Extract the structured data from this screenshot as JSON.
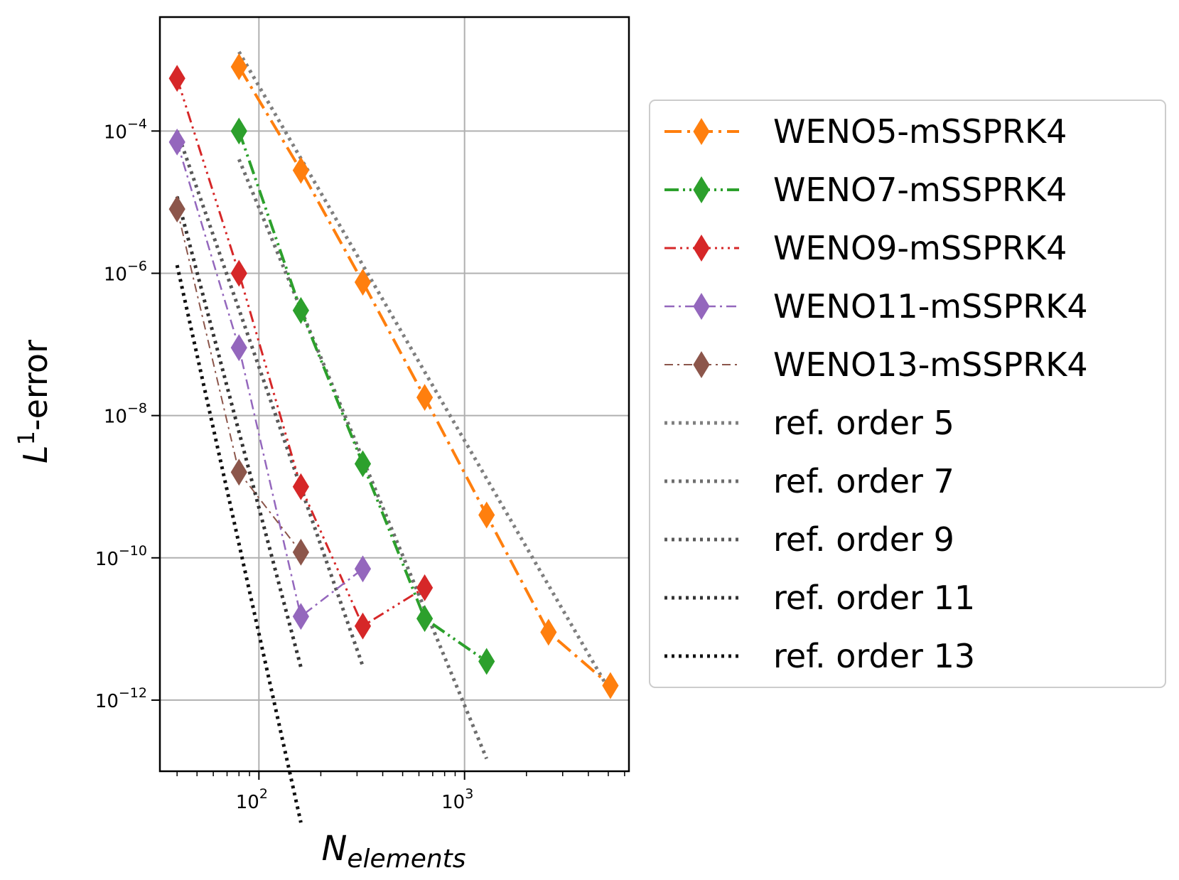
{
  "chart_data": {
    "type": "line",
    "xscale": "log",
    "yscale": "log",
    "xlim": [
      33,
      6300
    ],
    "ylim": [
      1e-13,
      0.004
    ],
    "xticks": [
      {
        "value": 100,
        "base": "10",
        "exp": "2"
      },
      {
        "value": 1000,
        "base": "10",
        "exp": "3"
      }
    ],
    "yticks": [
      {
        "value": 0.0001,
        "base": "10",
        "exp": "−4"
      },
      {
        "value": 1e-06,
        "base": "10",
        "exp": "−6"
      },
      {
        "value": 1e-08,
        "base": "10",
        "exp": "−8"
      },
      {
        "value": 1e-10,
        "base": "10",
        "exp": "−10"
      },
      {
        "value": 1e-12,
        "base": "10",
        "exp": "−12"
      }
    ],
    "xlabel": {
      "main": "N",
      "sub": "elements"
    },
    "ylabel": {
      "pre": "L",
      "sup": "1",
      "post": "-error"
    },
    "grid": true,
    "legend_position": "right-outside",
    "series": [
      {
        "name": "WENO5-mSSPRK4",
        "color": "#ff7f0e",
        "dash": "24 8 4 8",
        "width": 4,
        "x": [
          80,
          160,
          320,
          640,
          1280,
          2560,
          5120
        ],
        "y": [
          0.0008,
          2.8e-05,
          7.5e-07,
          1.8e-08,
          4e-10,
          9e-12,
          1.6e-12
        ]
      },
      {
        "name": "WENO7-mSSPRK4",
        "color": "#2ca02c",
        "dash": "20 6 3 6 3 6",
        "width": 4,
        "x": [
          80,
          160,
          320,
          640,
          1280
        ],
        "y": [
          0.0001,
          3e-07,
          2.1e-09,
          1.4e-11,
          3.5e-12
        ]
      },
      {
        "name": "WENO9-mSSPRK4",
        "color": "#d62728",
        "dash": "16 6 3 6 3 6 3 6",
        "width": 3,
        "x": [
          40,
          80,
          160,
          320,
          640
        ],
        "y": [
          0.00055,
          1e-06,
          1e-09,
          1.1e-11,
          3.8e-11
        ]
      },
      {
        "name": "WENO11-mSSPRK4",
        "color": "#9467bd",
        "dash": "14 6 3 6",
        "width": 2.5,
        "x": [
          40,
          80,
          160,
          320
        ],
        "y": [
          7e-05,
          9e-08,
          1.5e-11,
          7e-11
        ]
      },
      {
        "name": "WENO13-mSSPRK4",
        "color": "#8c564b",
        "dash": "12 6 3 6",
        "width": 2,
        "x": [
          40,
          80,
          160
        ],
        "y": [
          8e-06,
          1.6e-09,
          1.2e-10
        ]
      },
      {
        "name": "ref. order 5",
        "color": "#7f7f7f",
        "dash": "4 6",
        "width": 5,
        "reference": true,
        "x": [
          80,
          5120
        ],
        "y": [
          0.0013,
          1.3e-12
        ]
      },
      {
        "name": "ref. order 7",
        "color": "#6e6e6e",
        "dash": "4 6",
        "width": 5,
        "reference": true,
        "x": [
          80,
          1280
        ],
        "y": [
          4e-05,
          1.5e-13
        ]
      },
      {
        "name": "ref. order 9",
        "color": "#595959",
        "dash": "4 6",
        "width": 5,
        "reference": true,
        "x": [
          40,
          320
        ],
        "y": [
          0.0001,
          3e-12
        ]
      },
      {
        "name": "ref. order 11",
        "color": "#333333",
        "dash": "4 6",
        "width": 5,
        "reference": true,
        "x": [
          40,
          160
        ],
        "y": [
          1.2e-05,
          2.9e-12
        ]
      },
      {
        "name": "ref. order 13",
        "color": "#111111",
        "dash": "4 6",
        "width": 5,
        "reference": true,
        "x": [
          40,
          160
        ],
        "y": [
          1.3e-06,
          1.9e-14
        ]
      }
    ]
  }
}
